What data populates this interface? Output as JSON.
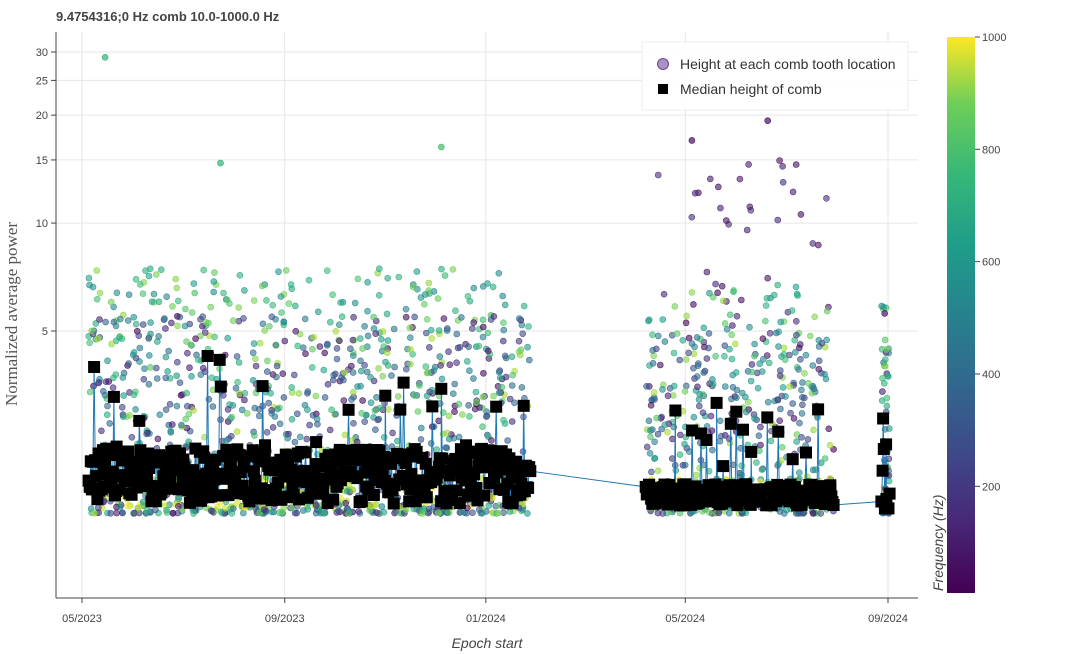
{
  "title": "9.4754316;0 Hz comb 10.0-1000.0 Hz",
  "chart_data": {
    "type": "scatter",
    "title": "9.4754316;0 Hz comb 10.0-1000.0 Hz",
    "xlabel": "Epoch start",
    "ylabel": "Normalized average power",
    "x_ticks": [
      "05/2023",
      "09/2023",
      "01/2024",
      "05/2024",
      "09/2024"
    ],
    "y_ticks": [
      5,
      10,
      15,
      20,
      25,
      30
    ],
    "y_scale": "log",
    "grid": true,
    "legend": {
      "placement": "top-right",
      "entries": [
        "Height at each comb tooth location",
        "Median height of comb"
      ]
    },
    "colorbar": {
      "label": "Frequency (Hz)",
      "ticks": [
        200,
        400,
        600,
        800,
        1000
      ],
      "range": [
        10,
        1000
      ],
      "colormap": "viridis"
    },
    "annotated_outliers": [
      {
        "x": "2023-05-15",
        "y": 29.0,
        "freq": 650
      },
      {
        "x": "2023-07-24",
        "y": 14.7,
        "freq": 650
      },
      {
        "x": "2023-12-05",
        "y": 16.3,
        "freq": 700
      },
      {
        "x": "2024-06-20",
        "y": 19.3,
        "freq": 60
      },
      {
        "x": "2024-05-05",
        "y": 17.0,
        "freq": 60
      },
      {
        "x": "2024-08-30",
        "y": 5.6,
        "freq": 80
      }
    ],
    "data_segments": [
      {
        "start": "2023-05-05",
        "end": "2024-01-28",
        "median_base": 2.0,
        "median_spread": 0.35,
        "bottom": 1.55,
        "scatter_top": 5.5,
        "low_freq_high": false
      },
      {
        "start": "2024-04-07",
        "end": "2024-07-30",
        "median_base": 1.75,
        "median_spread": 0.12,
        "bottom": 1.55,
        "scatter_top": 5.0,
        "low_freq_high": true
      },
      {
        "start": "2024-08-28",
        "end": "2024-09-02",
        "median_base": 1.75,
        "median_spread": 0.8,
        "bottom": 1.55,
        "scatter_top": 4.5,
        "low_freq_high": false
      }
    ],
    "median_series": [
      {
        "x": "2023-05-07",
        "y": 1.82
      },
      {
        "x": "2023-05-14",
        "y": 2.05
      },
      {
        "x": "2023-05-22",
        "y": 2.38
      },
      {
        "x": "2023-06-02",
        "y": 2.0
      },
      {
        "x": "2023-06-15",
        "y": 2.2
      },
      {
        "x": "2023-07-01",
        "y": 1.95
      },
      {
        "x": "2023-07-18",
        "y": 2.1
      },
      {
        "x": "2023-08-05",
        "y": 2.25
      },
      {
        "x": "2023-08-20",
        "y": 2.4
      },
      {
        "x": "2023-09-05",
        "y": 1.72
      },
      {
        "x": "2023-09-20",
        "y": 2.45
      },
      {
        "x": "2023-10-05",
        "y": 2.2
      },
      {
        "x": "2023-10-20",
        "y": 2.33
      },
      {
        "x": "2023-11-01",
        "y": 3.3
      },
      {
        "x": "2023-11-20",
        "y": 2.3
      },
      {
        "x": "2023-12-05",
        "y": 3.45
      },
      {
        "x": "2023-12-20",
        "y": 2.4
      },
      {
        "x": "2024-01-05",
        "y": 2.3
      },
      {
        "x": "2024-01-20",
        "y": 1.8
      },
      {
        "x": "2024-04-10",
        "y": 1.8
      },
      {
        "x": "2024-04-25",
        "y": 3.0
      },
      {
        "x": "2024-05-20",
        "y": 3.15
      },
      {
        "x": "2024-06-10",
        "y": 2.3
      },
      {
        "x": "2024-07-10",
        "y": 1.75
      },
      {
        "x": "2024-07-28",
        "y": 1.82
      },
      {
        "x": "2024-08-29",
        "y": 2.85
      },
      {
        "x": "2024-08-31",
        "y": 1.7
      }
    ]
  },
  "colors": {
    "grid": "#e6e6e6",
    "axis": "#444444",
    "median_marker": "#000000",
    "line": "#1f77b4",
    "legend_circle": "#8c6bb1"
  }
}
